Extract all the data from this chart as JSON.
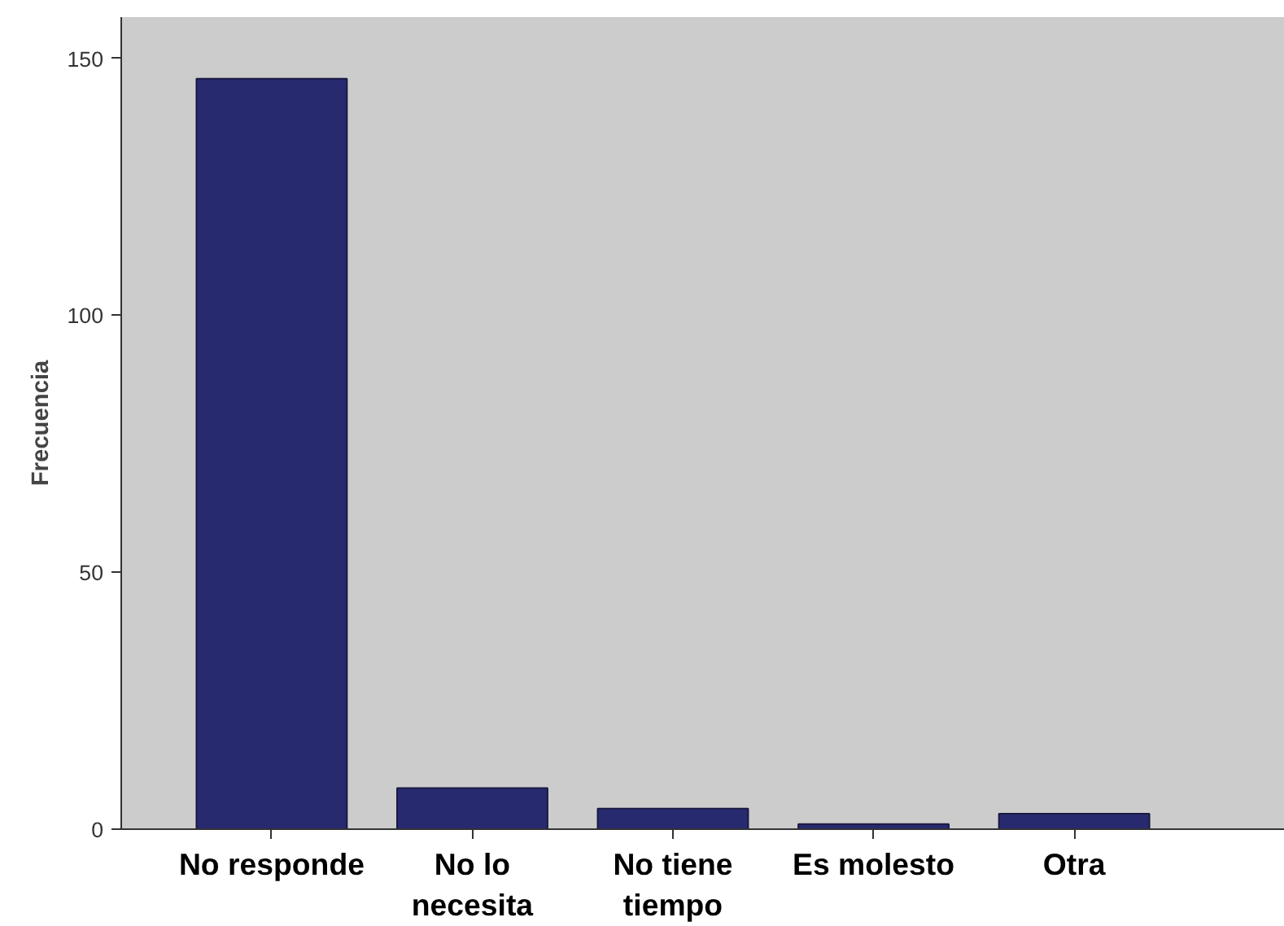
{
  "chart_data": {
    "type": "bar",
    "ylabel": "Frecuencia",
    "categories": [
      "No responde",
      "No lo necesita",
      "No tiene tiempo",
      "Es molesto",
      "Otra"
    ],
    "values": [
      146,
      8,
      4,
      1,
      3
    ],
    "color": "#282a70",
    "ylim": [
      0,
      158
    ],
    "yticks": [
      0,
      50,
      100,
      150
    ],
    "grid": false
  }
}
